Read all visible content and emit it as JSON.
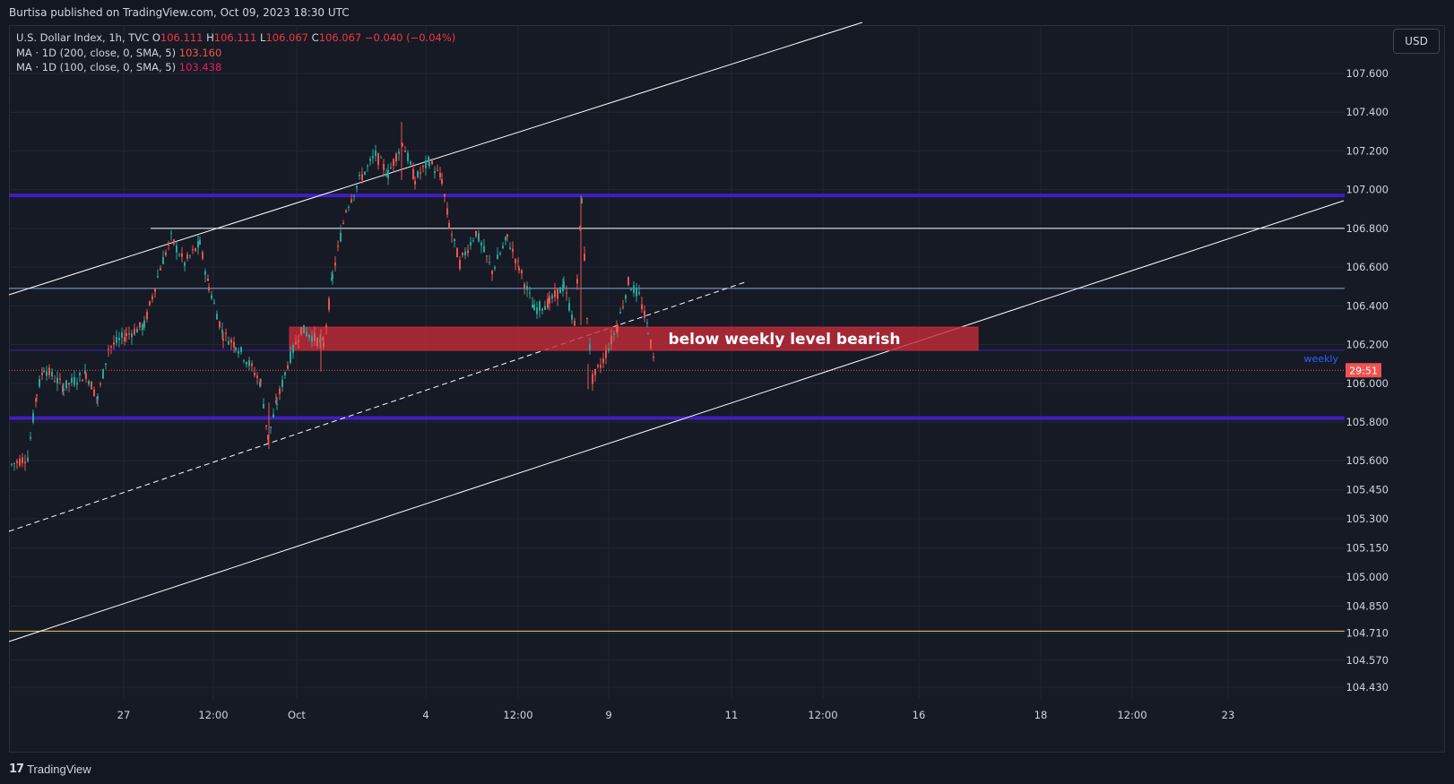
{
  "header": {
    "published": "Burtisa published on TradingView.com, Oct 09, 2023 18:30 UTC"
  },
  "legend": {
    "symbol": "U.S. Dollar Index, 1h, TVC",
    "o_label": "O",
    "o": "106.111",
    "h_label": "H",
    "h": "106.111",
    "l_label": "L",
    "l": "106.067",
    "c_label": "C",
    "c": "106.067",
    "change": "−0.040 (−0.04%)",
    "ma200_label": "MA · 1D (200, close, 0, SMA, 5)",
    "ma200": "103.160",
    "ma100_label": "MA · 1D (100, close, 0, SMA, 5)",
    "ma100": "103.438"
  },
  "currency": "USD",
  "footer": {
    "brand": "TradingView"
  },
  "colors": {
    "background": "#161a25",
    "up": "#26a69a",
    "down": "#ef5350",
    "zone": "#c62b39",
    "level": "#3f1fbf",
    "channel": "#ffffff",
    "support": "#f0d060"
  },
  "chart_data": {
    "type": "candlestick",
    "symbol": "U.S. Dollar Index",
    "interval": "1h",
    "ylim": [
      104.37,
      107.85
    ],
    "y_ticks": [
      "107.600",
      "107.400",
      "107.200",
      "107.000",
      "106.800",
      "106.600",
      "106.400",
      "106.200",
      "106.000",
      "105.800",
      "105.600",
      "105.450",
      "105.300",
      "105.150",
      "105.000",
      "104.850",
      "104.710",
      "104.570",
      "104.430"
    ],
    "x_ticks": [
      "27",
      "12:00",
      "Oct",
      "4",
      "12:00",
      "9",
      "11",
      "12:00",
      "16",
      "18",
      "12:00",
      "23"
    ],
    "last_price": "106.067",
    "countdown": "29:51",
    "levels": [
      {
        "name": "resistance-107",
        "value": 106.97,
        "color": "#3f1fbf"
      },
      {
        "name": "level-106-8",
        "value": 106.8,
        "color": "#ffffff"
      },
      {
        "name": "level-106-49",
        "value": 106.49,
        "color": "#7fb0d8"
      },
      {
        "name": "weekly",
        "value": 106.17,
        "color": "#3f1fbf",
        "label": "weekly"
      },
      {
        "name": "support-105-8",
        "value": 105.82,
        "color": "#3f1fbf"
      },
      {
        "name": "support-104-72",
        "value": 104.72,
        "color": "#f0d060"
      }
    ],
    "zone": {
      "label": "below weekly level bearish",
      "from": 106.17,
      "to": 106.29
    },
    "candles_summary": {
      "open_first": 105.58,
      "high_max": 107.35,
      "low_min": 105.55,
      "close_last": 106.067
    }
  }
}
